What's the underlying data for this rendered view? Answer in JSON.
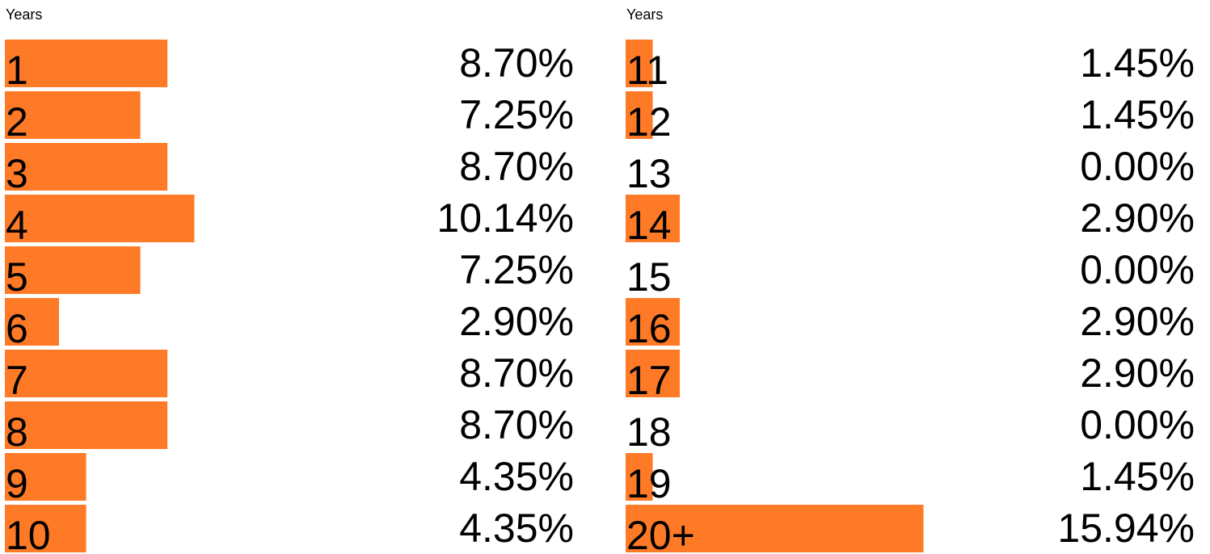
{
  "chart_data": [
    {
      "type": "bar",
      "title": "Years",
      "color": "#ff7a27",
      "categories": [
        "1",
        "2",
        "3",
        "4",
        "5",
        "6",
        "7",
        "8",
        "9",
        "10"
      ],
      "values": [
        8.7,
        7.25,
        8.7,
        10.14,
        7.25,
        2.9,
        8.7,
        8.7,
        4.35,
        4.35
      ],
      "value_labels": [
        "8.70%",
        "7.25%",
        "8.70%",
        "10.14%",
        "7.25%",
        "2.90%",
        "8.70%",
        "8.70%",
        "4.35%",
        "4.35%"
      ]
    },
    {
      "type": "bar",
      "title": "Years",
      "color": "#ff7a27",
      "categories": [
        "11",
        "12",
        "13",
        "14",
        "15",
        "16",
        "17",
        "18",
        "19",
        "20+"
      ],
      "values": [
        1.45,
        1.45,
        0,
        2.9,
        0,
        2.9,
        2.9,
        0,
        1.45,
        15.94
      ],
      "value_labels": [
        "1.45%",
        "1.45%",
        "0.00%",
        "2.90%",
        "0.00%",
        "2.90%",
        "2.90%",
        "0.00%",
        "1.45%",
        "15.94%"
      ]
    }
  ]
}
